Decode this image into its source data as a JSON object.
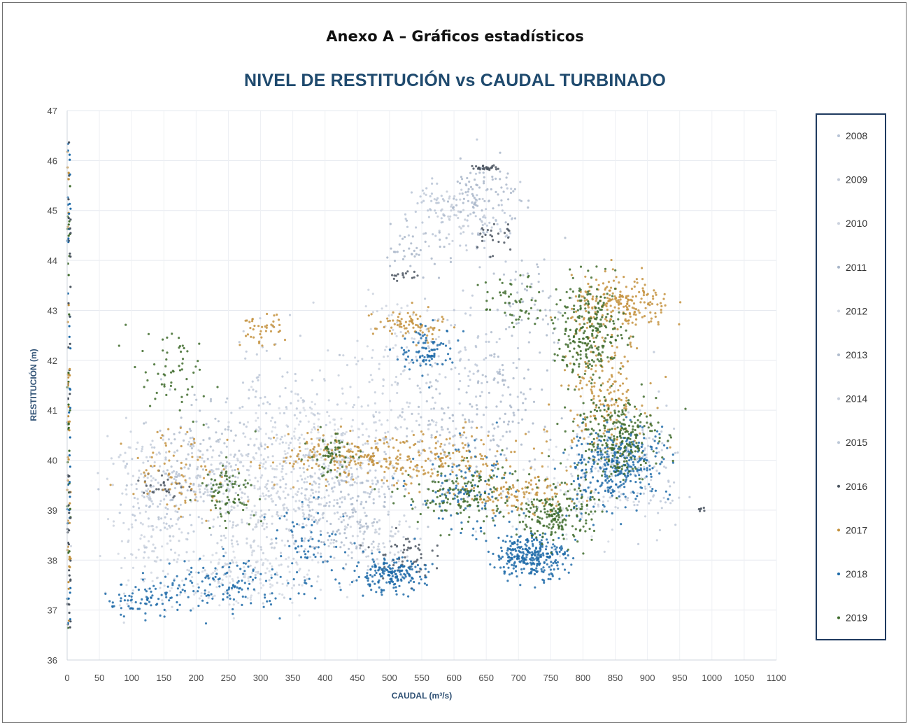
{
  "annex_title": "Anexo A – Gráficos estadísticos",
  "chart_data": {
    "type": "scatter",
    "title": "NIVEL DE RESTITUCIÓN vs CAUDAL TURBINADO",
    "xlabel": "CAUDAL (m³/s)",
    "ylabel": "RESTITUCIÓN (m)",
    "xlim": [
      0,
      1100
    ],
    "ylim": [
      36,
      47
    ],
    "x_ticks": [
      "0",
      "50",
      "100",
      "150",
      "200",
      "250",
      "300",
      "350",
      "400",
      "450",
      "500",
      "550",
      "600",
      "650",
      "700",
      "750",
      "800",
      "850",
      "900",
      "950",
      "1000",
      "1050",
      "1100"
    ],
    "y_ticks": [
      "36",
      "37",
      "38",
      "39",
      "40",
      "41",
      "42",
      "43",
      "44",
      "45",
      "46",
      "47"
    ],
    "grid": true,
    "legend_position": "right",
    "series": [
      {
        "name": "2008",
        "color": "#b8c4d6",
        "clusters": [
          [
            420,
            39.7,
            90,
            0.9,
            180
          ],
          [
            160,
            39.3,
            70,
            0.9,
            120
          ],
          [
            560,
            45.0,
            40,
            0.5,
            40
          ],
          [
            650,
            44.8,
            60,
            0.9,
            60
          ]
        ]
      },
      {
        "name": "2009",
        "color": "#c3cbd8",
        "clusters": [
          [
            300,
            38.6,
            110,
            1.1,
            200
          ],
          [
            600,
            44.9,
            50,
            0.7,
            50
          ],
          [
            240,
            39.8,
            60,
            0.6,
            80
          ],
          [
            470,
            38.3,
            60,
            0.6,
            80
          ]
        ]
      },
      {
        "name": "2010",
        "color": "#cbd2de",
        "clusters": [
          [
            350,
            39.4,
            140,
            1.2,
            200
          ],
          [
            520,
            42.3,
            60,
            0.9,
            60
          ],
          [
            130,
            38.2,
            60,
            0.9,
            80
          ]
        ]
      },
      {
        "name": "2011",
        "color": "#a9b6c9",
        "clusters": [
          [
            640,
            45.3,
            50,
            0.6,
            80
          ],
          [
            540,
            44.2,
            60,
            0.4,
            40
          ],
          [
            680,
            41.0,
            70,
            1.5,
            90
          ],
          [
            430,
            38.9,
            60,
            0.8,
            90
          ]
        ]
      },
      {
        "name": "2012",
        "color": "#d3d9e3",
        "clusters": [
          [
            250,
            37.6,
            120,
            0.6,
            140
          ],
          [
            780,
            39.4,
            80,
            1.0,
            90
          ],
          [
            380,
            40.5,
            90,
            0.9,
            100
          ]
        ]
      },
      {
        "name": "2013",
        "color": "#b0bccd",
        "clusters": [
          [
            590,
            40.6,
            90,
            1.3,
            110
          ],
          [
            200,
            40.3,
            70,
            1.1,
            90
          ],
          [
            720,
            43.1,
            60,
            0.9,
            60
          ]
        ]
      },
      {
        "name": "2014",
        "color": "#c7cfdc",
        "clusters": [
          [
            480,
            41.0,
            90,
            1.1,
            100
          ],
          [
            840,
            39.8,
            60,
            1.0,
            80
          ],
          [
            110,
            39.8,
            50,
            0.9,
            60
          ]
        ]
      },
      {
        "name": "2015",
        "color": "#bcc7d7",
        "clusters": [
          [
            900,
            39.8,
            50,
            1.2,
            70
          ],
          [
            620,
            42.2,
            60,
            1.0,
            70
          ],
          [
            320,
            41.3,
            70,
            1.3,
            80
          ]
        ]
      },
      {
        "name": "2016",
        "color": "#4b5560",
        "clusters": [
          [
            650,
            45.85,
            20,
            0.05,
            30
          ],
          [
            520,
            43.7,
            20,
            0.1,
            15
          ],
          [
            520,
            38.1,
            40,
            0.4,
            50
          ],
          [
            660,
            44.5,
            30,
            0.4,
            25
          ],
          [
            150,
            39.5,
            30,
            0.3,
            30
          ],
          [
            985,
            39.0,
            6,
            0.05,
            6
          ]
        ]
      },
      {
        "name": "2017",
        "color": "#c4923e",
        "clusters": [
          [
            860,
            43.1,
            70,
            0.5,
            220
          ],
          [
            830,
            41.3,
            60,
            1.1,
            180
          ],
          [
            550,
            40.0,
            150,
            0.5,
            220
          ],
          [
            420,
            40.1,
            80,
            0.4,
            120
          ],
          [
            530,
            42.7,
            50,
            0.3,
            80
          ],
          [
            300,
            42.6,
            30,
            0.3,
            40
          ],
          [
            700,
            39.3,
            80,
            0.3,
            120
          ],
          [
            180,
            39.8,
            80,
            0.8,
            80
          ]
        ]
      },
      {
        "name": "2018",
        "color": "#1d6aa8",
        "clusters": [
          [
            720,
            38.1,
            50,
            0.4,
            300
          ],
          [
            500,
            37.7,
            50,
            0.3,
            180
          ],
          [
            870,
            40.0,
            60,
            0.7,
            220
          ],
          [
            560,
            42.2,
            40,
            0.4,
            90
          ],
          [
            250,
            37.5,
            80,
            0.5,
            120
          ],
          [
            120,
            37.2,
            60,
            0.3,
            80
          ],
          [
            620,
            39.3,
            70,
            0.8,
            120
          ],
          [
            820,
            39.7,
            50,
            0.8,
            120
          ],
          [
            380,
            38.2,
            60,
            0.8,
            80
          ]
        ]
      },
      {
        "name": "2019",
        "color": "#3e6b2b",
        "clusters": [
          [
            810,
            42.6,
            50,
            0.9,
            260
          ],
          [
            850,
            40.5,
            60,
            0.8,
            260
          ],
          [
            760,
            38.9,
            50,
            0.5,
            200
          ],
          [
            610,
            39.3,
            80,
            0.6,
            150
          ],
          [
            250,
            39.4,
            40,
            0.5,
            80
          ],
          [
            410,
            40.1,
            30,
            0.4,
            60
          ],
          [
            160,
            41.7,
            60,
            0.8,
            60
          ],
          [
            690,
            43.2,
            40,
            0.5,
            50
          ]
        ]
      }
    ]
  }
}
